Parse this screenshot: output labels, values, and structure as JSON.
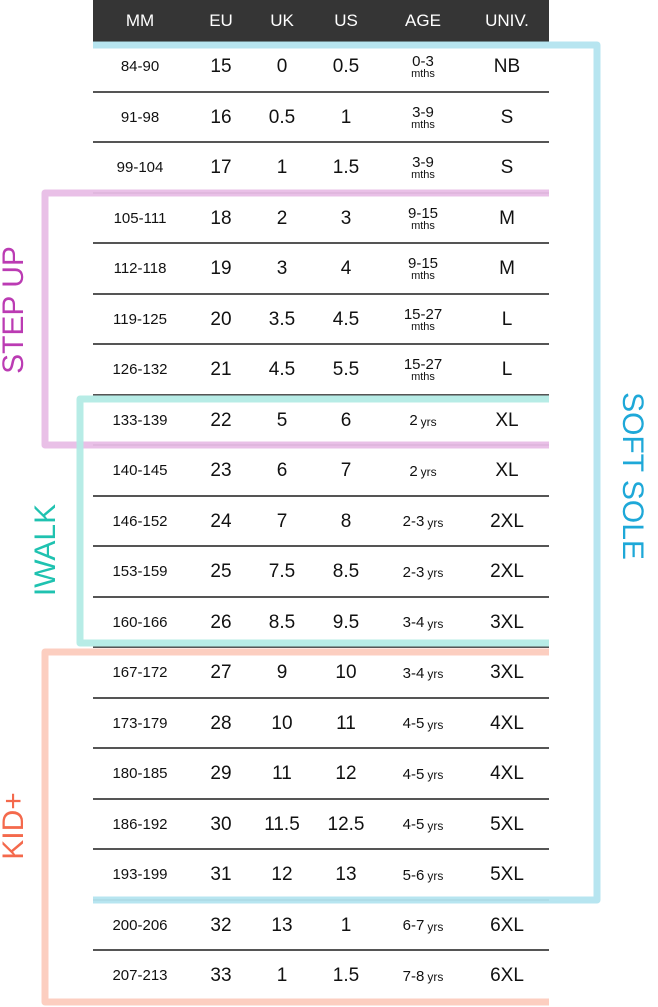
{
  "headers": [
    "MM",
    "EU",
    "UK",
    "US",
    "AGE",
    "UNIV."
  ],
  "rows": [
    {
      "mm": "84-90",
      "eu": "15",
      "uk": "0",
      "us": "0.5",
      "age": "0-3",
      "age_unit": "mths",
      "univ": "NB"
    },
    {
      "mm": "91-98",
      "eu": "16",
      "uk": "0.5",
      "us": "1",
      "age": "3-9",
      "age_unit": "mths",
      "univ": "S"
    },
    {
      "mm": "99-104",
      "eu": "17",
      "uk": "1",
      "us": "1.5",
      "age": "3-9",
      "age_unit": "mths",
      "univ": "S"
    },
    {
      "mm": "105-111",
      "eu": "18",
      "uk": "2",
      "us": "3",
      "age": "9-15",
      "age_unit": "mths",
      "univ": "M"
    },
    {
      "mm": "112-118",
      "eu": "19",
      "uk": "3",
      "us": "4",
      "age": "9-15",
      "age_unit": "mths",
      "univ": "M"
    },
    {
      "mm": "119-125",
      "eu": "20",
      "uk": "3.5",
      "us": "4.5",
      "age": "15-27",
      "age_unit": "mths",
      "univ": "L"
    },
    {
      "mm": "126-132",
      "eu": "21",
      "uk": "4.5",
      "us": "5.5",
      "age": "15-27",
      "age_unit": "mths",
      "univ": "L"
    },
    {
      "mm": "133-139",
      "eu": "22",
      "uk": "5",
      "us": "6",
      "age": "2",
      "age_unit": "yrs",
      "univ": "XL"
    },
    {
      "mm": "140-145",
      "eu": "23",
      "uk": "6",
      "us": "7",
      "age": "2",
      "age_unit": "yrs",
      "univ": "XL"
    },
    {
      "mm": "146-152",
      "eu": "24",
      "uk": "7",
      "us": "8",
      "age": "2-3",
      "age_unit": "yrs",
      "univ": "2XL"
    },
    {
      "mm": "153-159",
      "eu": "25",
      "uk": "7.5",
      "us": "8.5",
      "age": "2-3",
      "age_unit": "yrs",
      "univ": "2XL"
    },
    {
      "mm": "160-166",
      "eu": "26",
      "uk": "8.5",
      "us": "9.5",
      "age": "3-4",
      "age_unit": "yrs",
      "univ": "3XL"
    },
    {
      "mm": "167-172",
      "eu": "27",
      "uk": "9",
      "us": "10",
      "age": "3-4",
      "age_unit": "yrs",
      "univ": "3XL"
    },
    {
      "mm": "173-179",
      "eu": "28",
      "uk": "10",
      "us": "11",
      "age": "4-5",
      "age_unit": "yrs",
      "univ": "4XL"
    },
    {
      "mm": "180-185",
      "eu": "29",
      "uk": "11",
      "us": "12",
      "age": "4-5",
      "age_unit": "yrs",
      "univ": "4XL"
    },
    {
      "mm": "186-192",
      "eu": "30",
      "uk": "11.5",
      "us": "12.5",
      "age": "4-5",
      "age_unit": "yrs",
      "univ": "5XL"
    },
    {
      "mm": "193-199",
      "eu": "31",
      "uk": "12",
      "us": "13",
      "age": "5-6",
      "age_unit": "yrs",
      "univ": "5XL"
    },
    {
      "mm": "200-206",
      "eu": "32",
      "uk": "13",
      "us": "1",
      "age": "6-7",
      "age_unit": "yrs",
      "univ": "6XL"
    },
    {
      "mm": "207-213",
      "eu": "33",
      "uk": "1",
      "us": "1.5",
      "age": "7-8",
      "age_unit": "yrs",
      "univ": "6XL"
    }
  ],
  "groups": {
    "soft_sole": {
      "label": "SOFT SOLE",
      "line_color": "#b3e4ef",
      "text_color": "#1ea8d8"
    },
    "step_up": {
      "label": "STEP UP",
      "line_color": "#e8bde6",
      "text_color": "#bb3bb3"
    },
    "iwalk": {
      "label": "IWALK",
      "line_color": "#b3ebe5",
      "text_color": "#1fc2b0"
    },
    "kid_plus": {
      "label": "KID+",
      "line_color": "#fccbbd",
      "text_color": "#f4694c"
    }
  }
}
